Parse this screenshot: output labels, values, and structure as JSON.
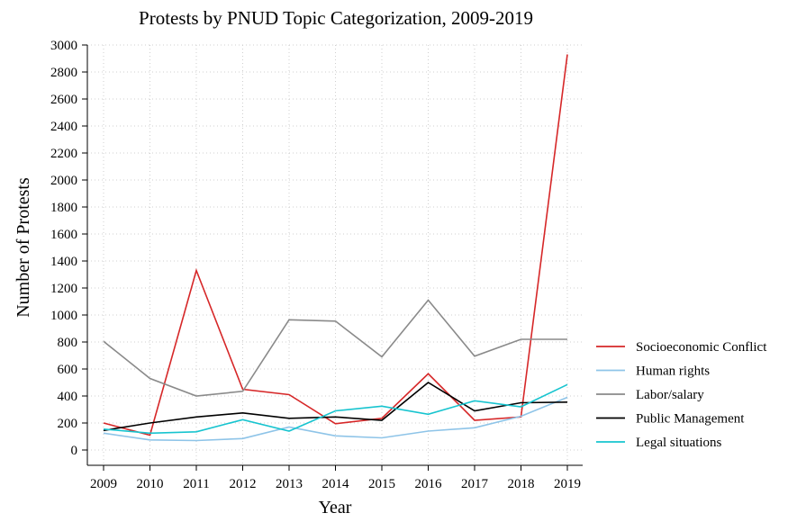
{
  "chart_data": {
    "type": "line",
    "title": "Protests by PNUD Topic Categorization, 2009-2019",
    "xlabel": "Year",
    "ylabel": "Number of Protests",
    "x": [
      2009,
      2010,
      2011,
      2012,
      2013,
      2014,
      2015,
      2016,
      2017,
      2018,
      2019
    ],
    "x_tick_labels": [
      "2009",
      "2010",
      "2011",
      "2012",
      "2013",
      "2014",
      "2015",
      "2016",
      "2017",
      "2018",
      "2019"
    ],
    "ylim": [
      0,
      3000
    ],
    "y_ticks": [
      0,
      200,
      400,
      600,
      800,
      1000,
      1200,
      1400,
      1600,
      1800,
      2000,
      2200,
      2400,
      2600,
      2800,
      3000
    ],
    "y_tick_labels": [
      "0",
      "200",
      "400",
      "600",
      "800",
      "1000",
      "1200",
      "1400",
      "1600",
      "1800",
      "2000",
      "2200",
      "2400",
      "2600",
      "2800",
      "3000"
    ],
    "grid": true,
    "legend_position": "right",
    "series": [
      {
        "name": "Socioeconomic Conflict",
        "color": "#d62728",
        "values": [
          200,
          110,
          1330,
          450,
          410,
          195,
          235,
          565,
          220,
          245,
          2930
        ]
      },
      {
        "name": "Human rights",
        "color": "#8ec4e8",
        "values": [
          125,
          75,
          70,
          85,
          170,
          105,
          90,
          140,
          165,
          250,
          390
        ]
      },
      {
        "name": "Labor/salary",
        "color": "#8a8a8a",
        "values": [
          805,
          530,
          400,
          435,
          965,
          955,
          690,
          1110,
          695,
          820,
          820
        ]
      },
      {
        "name": "Public Management",
        "color": "#000000",
        "values": [
          145,
          200,
          245,
          275,
          235,
          245,
          220,
          500,
          290,
          350,
          355
        ]
      },
      {
        "name": "Legal situations",
        "color": "#17c4cf",
        "values": [
          155,
          125,
          135,
          225,
          140,
          290,
          325,
          265,
          365,
          320,
          485
        ]
      }
    ]
  }
}
